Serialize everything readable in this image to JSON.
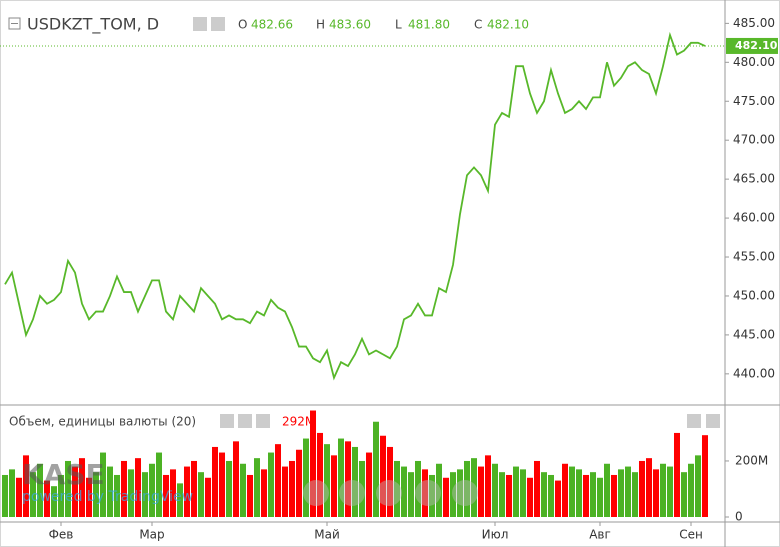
{
  "chart_data": [
    {
      "type": "line",
      "title": "USDKZT_TOM, D",
      "ohlc": [
        {
          "key": "O",
          "value": "482.66"
        },
        {
          "key": "H",
          "value": "483.60"
        },
        {
          "key": "L",
          "value": "481.80"
        },
        {
          "key": "C",
          "value": "482.10"
        }
      ],
      "last_label": "482.10",
      "watermark": "KASE",
      "credit": "powered by TradingView",
      "categories": [
        null,
        null,
        null,
        null,
        null,
        null,
        null,
        null,
        "Фев",
        null,
        null,
        null,
        null,
        null,
        null,
        null,
        null,
        null,
        null,
        null,
        null,
        "Мар",
        null,
        null,
        null,
        null,
        null,
        null,
        null,
        null,
        null,
        null,
        null,
        null,
        null,
        null,
        null,
        null,
        null,
        null,
        null,
        null,
        null,
        null,
        null,
        null,
        "Май",
        null,
        null,
        null,
        null,
        null,
        null,
        null,
        null,
        null,
        null,
        null,
        null,
        null,
        null,
        null,
        null,
        null,
        null,
        null,
        null,
        null,
        null,
        null,
        "Июл",
        null,
        null,
        null,
        null,
        null,
        null,
        null,
        null,
        null,
        null,
        null,
        null,
        null,
        null,
        "Авг",
        null,
        null,
        null,
        null,
        null,
        null,
        null,
        null,
        null,
        null,
        null,
        null,
        "Сен",
        null,
        null
      ],
      "series": [
        {
          "name": "USDKZT_TOM",
          "color": "#58b82a",
          "values": [
            451.5,
            453,
            449,
            445,
            447,
            450,
            449,
            449.5,
            450.5,
            454.5,
            453,
            449,
            447,
            448,
            448,
            450,
            452.5,
            450.5,
            450.5,
            448,
            450,
            452,
            452,
            448,
            447,
            450,
            449,
            448,
            451,
            450,
            449,
            447,
            447.5,
            447,
            447,
            446.5,
            448,
            447.5,
            449.5,
            448.5,
            448,
            446,
            443.5,
            443.5,
            442,
            441.5,
            443,
            439.5,
            441.5,
            441,
            442.5,
            444.5,
            442.5,
            443,
            442.5,
            442,
            443.5,
            447,
            447.5,
            449,
            447.5,
            447.5,
            451,
            450.5,
            454,
            460.5,
            465.5,
            466.5,
            465.5,
            463.5,
            472,
            473.5,
            473,
            479.5,
            479.5,
            476,
            473.5,
            475,
            479,
            476,
            473.5,
            474,
            475,
            474,
            475.5,
            475.5,
            480,
            477,
            478,
            479.5,
            480,
            479,
            478.5,
            476,
            479.5,
            483.5,
            481,
            481.5,
            482.5,
            482.5,
            482.1
          ]
        }
      ],
      "ylim": [
        436,
        488
      ],
      "yticks": [
        {
          "value": 440,
          "label": "440.00"
        },
        {
          "value": 445,
          "label": "445.00"
        },
        {
          "value": 450,
          "label": "450.00"
        },
        {
          "value": 455,
          "label": "455.00"
        },
        {
          "value": 460,
          "label": "460.00"
        },
        {
          "value": 465,
          "label": "465.00"
        },
        {
          "value": 470,
          "label": "470.00"
        },
        {
          "value": 475,
          "label": "475.00"
        },
        {
          "value": 480,
          "label": "480.00"
        },
        {
          "value": 485,
          "label": "485.00"
        }
      ]
    },
    {
      "type": "bar",
      "title": "Объем, единицы валюты (20)",
      "last_label": "292M",
      "up_color": "#4cb224",
      "down_color": "#ff0000",
      "values": [
        150,
        170,
        140,
        220,
        160,
        190,
        130,
        110,
        150,
        200,
        180,
        210,
        140,
        160,
        230,
        180,
        150,
        200,
        170,
        210,
        160,
        190,
        230,
        150,
        170,
        120,
        180,
        200,
        160,
        140,
        250,
        230,
        200,
        270,
        190,
        150,
        210,
        170,
        230,
        260,
        180,
        200,
        240,
        280,
        380,
        300,
        260,
        220,
        280,
        270,
        250,
        200,
        230,
        340,
        290,
        250,
        200,
        180,
        160,
        200,
        170,
        150,
        190,
        140,
        160,
        170,
        200,
        210,
        180,
        220,
        190,
        160,
        150,
        180,
        170,
        140,
        200,
        160,
        150,
        130,
        190,
        180,
        170,
        150,
        160,
        140,
        190,
        150,
        170,
        180,
        160,
        200,
        210,
        170,
        190,
        180,
        300,
        160,
        190,
        220,
        292
      ],
      "ylim": [
        0,
        389
      ],
      "yticks": [
        0,
        {
          "value": 200,
          "label": "200M"
        }
      ]
    }
  ]
}
